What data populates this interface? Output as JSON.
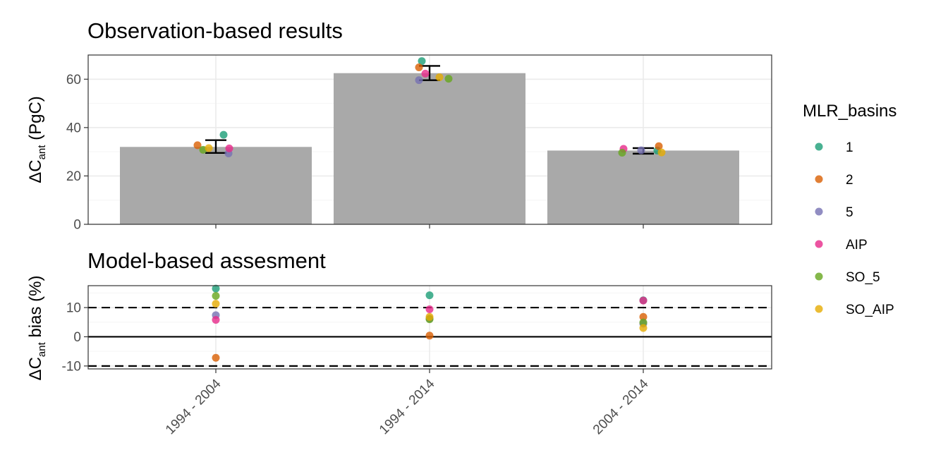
{
  "chart_data": [
    {
      "type": "bar",
      "title": "Observation-based results",
      "ylabel": {
        "main": "ΔC",
        "sub": "ant",
        "tail": " (PgC)"
      },
      "categories": [
        "1994 - 2004",
        "1994 - 2014",
        "2004 - 2014"
      ],
      "values": [
        32.0,
        62.5,
        30.5
      ],
      "error_bars": [
        [
          29.5,
          34.8
        ],
        [
          59.6,
          65.5
        ],
        [
          29.2,
          31.5
        ]
      ],
      "ylim": [
        0,
        70
      ],
      "yticks": [
        "0",
        "20",
        "40",
        "60"
      ],
      "ytick_values": [
        0,
        20,
        40,
        60
      ],
      "grid": true,
      "points": [
        {
          "category": "1994 - 2004",
          "series": "1",
          "y": 37.0
        },
        {
          "category": "1994 - 2004",
          "series": "2",
          "y": 32.7
        },
        {
          "category": "1994 - 2004",
          "series": "5",
          "y": 29.3
        },
        {
          "category": "1994 - 2004",
          "series": "AIP",
          "y": 31.4
        },
        {
          "category": "1994 - 2004",
          "series": "SO_5",
          "y": 30.8
        },
        {
          "category": "1994 - 2004",
          "series": "SO_AIP",
          "y": 31.5
        },
        {
          "category": "1994 - 2014",
          "series": "1",
          "y": 67.5
        },
        {
          "category": "1994 - 2014",
          "series": "2",
          "y": 64.9
        },
        {
          "category": "1994 - 2014",
          "series": "5",
          "y": 59.6
        },
        {
          "category": "1994 - 2014",
          "series": "AIP",
          "y": 62.3
        },
        {
          "category": "1994 - 2014",
          "series": "SO_5",
          "y": 60.2
        },
        {
          "category": "1994 - 2014",
          "series": "SO_AIP",
          "y": 60.8
        },
        {
          "category": "2004 - 2014",
          "series": "1",
          "y": 30.5
        },
        {
          "category": "2004 - 2014",
          "series": "2",
          "y": 32.3
        },
        {
          "category": "2004 - 2014",
          "series": "5",
          "y": 30.6
        },
        {
          "category": "2004 - 2014",
          "series": "AIP",
          "y": 31.2
        },
        {
          "category": "2004 - 2014",
          "series": "SO_5",
          "y": 29.6
        },
        {
          "category": "2004 - 2014",
          "series": "SO_AIP",
          "y": 29.7
        }
      ]
    },
    {
      "type": "scatter",
      "title": "Model-based assesment",
      "ylabel": {
        "main": "ΔC",
        "sub": "ant",
        "tail": " bias (%)"
      },
      "categories": [
        "1994 - 2004",
        "1994 - 2014",
        "2004 - 2014"
      ],
      "ylim": [
        -11,
        17.5
      ],
      "yticks": [
        "-10",
        "0",
        "10"
      ],
      "ytick_values": [
        -10,
        0,
        10
      ],
      "reference_lines": [
        {
          "y": 0,
          "style": "solid"
        },
        {
          "y": 10,
          "style": "dashed"
        },
        {
          "y": -10,
          "style": "dashed"
        }
      ],
      "grid": true,
      "points": [
        {
          "category": "1994 - 2004",
          "series": "1",
          "y": 16.5
        },
        {
          "category": "1994 - 2004",
          "series": "2",
          "y": -7.2
        },
        {
          "category": "1994 - 2004",
          "series": "5",
          "y": 7.4
        },
        {
          "category": "1994 - 2004",
          "series": "AIP",
          "y": 5.8
        },
        {
          "category": "1994 - 2004",
          "series": "SO_5",
          "y": 14.0
        },
        {
          "category": "1994 - 2004",
          "series": "SO_AIP",
          "y": 11.3
        },
        {
          "category": "1994 - 2014",
          "series": "1",
          "y": 14.2
        },
        {
          "category": "1994 - 2014",
          "series": "2",
          "y": 0.4
        },
        {
          "category": "1994 - 2014",
          "series": "5",
          "y": 6.2
        },
        {
          "category": "1994 - 2014",
          "series": "AIP",
          "y": 9.4
        },
        {
          "category": "1994 - 2014",
          "series": "SO_5",
          "y": 6.0
        },
        {
          "category": "1994 - 2014",
          "series": "SO_AIP",
          "y": 6.8
        },
        {
          "category": "2004 - 2014",
          "series": "1",
          "y": 12.5
        },
        {
          "category": "2004 - 2014",
          "series": "2",
          "y": 6.8
        },
        {
          "category": "2004 - 2014",
          "series": "5",
          "y": 4.5
        },
        {
          "category": "2004 - 2014",
          "series": "AIP",
          "y": 12.4
        },
        {
          "category": "2004 - 2014",
          "series": "SO_5",
          "y": 4.9
        },
        {
          "category": "2004 - 2014",
          "series": "SO_AIP",
          "y": 3.0
        }
      ]
    }
  ],
  "legend": {
    "title": "MLR_basins",
    "position": "right",
    "items": [
      {
        "label": "1",
        "color": "#1b9e77"
      },
      {
        "label": "2",
        "color": "#d95f02"
      },
      {
        "label": "5",
        "color": "#7570b3"
      },
      {
        "label": "AIP",
        "color": "#e7298a"
      },
      {
        "label": "SO_5",
        "color": "#66a61e"
      },
      {
        "label": "SO_AIP",
        "color": "#e6ab02"
      }
    ]
  },
  "colors": {
    "bar_fill": "#a9a9a9",
    "grid_major": "#ebebeb",
    "grid_minor": "#f5f5f5",
    "panel_border": "#333333"
  }
}
